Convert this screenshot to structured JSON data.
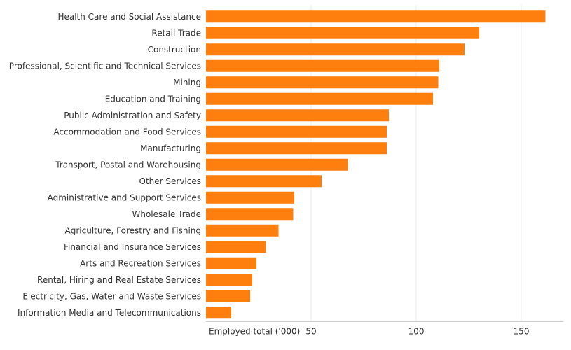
{
  "chart_data": {
    "type": "bar",
    "orientation": "horizontal",
    "categories": [
      "Health Care and Social Assistance",
      "Retail Trade",
      "Construction",
      "Professional, Scientific and Technical Services",
      "Mining",
      "Education and Training",
      "Public Administration and Safety",
      "Accommodation and Food Services",
      "Manufacturing",
      "Transport, Postal and Warehousing",
      "Other Services",
      "Administrative and Support Services",
      "Wholesale Trade",
      "Agriculture, Forestry and Fishing",
      "Financial and Insurance Services",
      "Arts and Recreation Services",
      "Rental, Hiring and Real Estate Services",
      "Electricity, Gas, Water and Waste Services",
      "Information Media and Telecommunications"
    ],
    "values": [
      161.5,
      130,
      123,
      111,
      110.5,
      108,
      87,
      86,
      86,
      67.5,
      55,
      42,
      41.5,
      34.5,
      28.5,
      24,
      22,
      21,
      12
    ],
    "xlabel": "Employed total ('000)",
    "xlim": [
      0,
      170
    ],
    "xticks": [
      50,
      100,
      150
    ],
    "grid": true,
    "bar_color": "#ff7f0e"
  }
}
